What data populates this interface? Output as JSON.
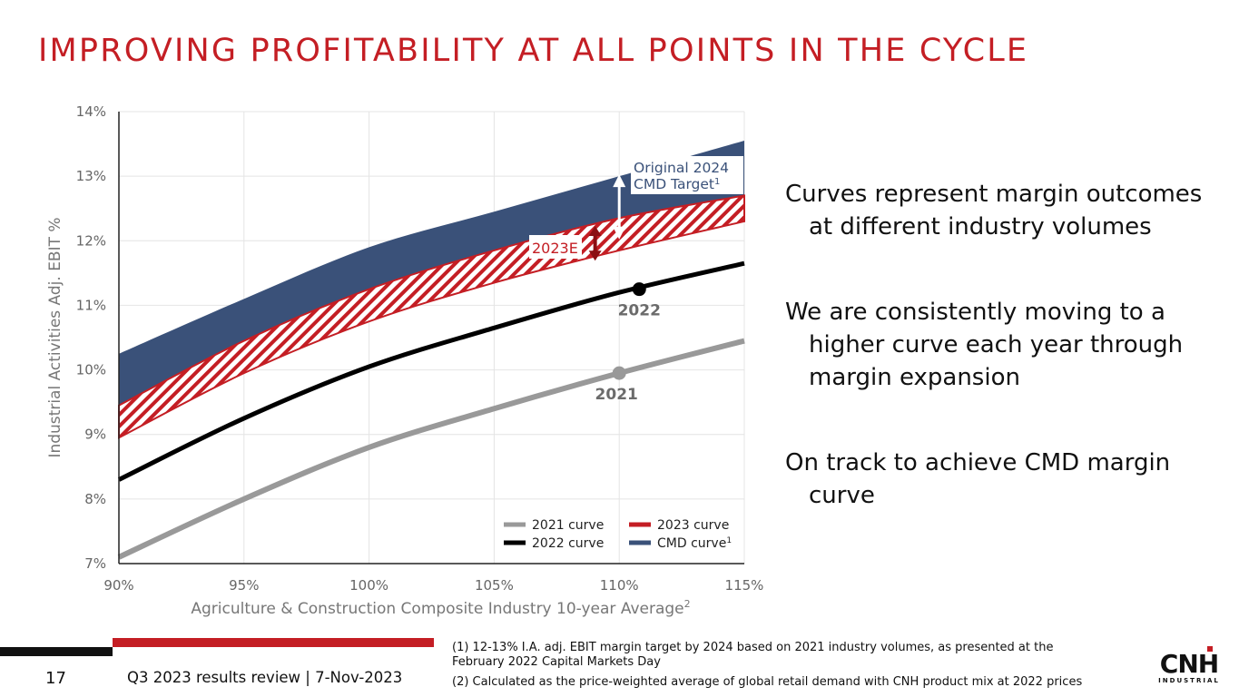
{
  "slide": {
    "title": "IMPROVING PROFITABILITY AT ALL POINTS IN THE CYCLE",
    "page_number": "17",
    "footer": "Q3 2023 results review | 7-Nov-2023",
    "notes": [
      "(1) 12-13% I.A. adj. EBIT margin target by 2024 based on 2021 industry volumes, as presented at the February 2022 Capital Markets Day",
      "(2) Calculated as the price-weighted average of global retail demand with CNH product mix at 2022 prices"
    ],
    "bullets": [
      "Curves represent margin outcomes at different industry volumes",
      "We are consistently moving to a higher curve each year through margin expansion",
      "On track to achieve CMD margin curve"
    ],
    "logo": {
      "text": "CNH",
      "subtext": "INDUSTRIAL"
    }
  },
  "chart_data": {
    "type": "line",
    "xlabel": "Agriculture & Construction Composite Industry 10-year Average",
    "xlabel_sup": "2",
    "ylabel": "Industrial Activities Adj. EBIT %",
    "xlim": [
      90,
      115
    ],
    "ylim": [
      7,
      14
    ],
    "x_ticks": [
      "90%",
      "95%",
      "100%",
      "105%",
      "110%",
      "115%"
    ],
    "y_ticks": [
      "7%",
      "8%",
      "9%",
      "10%",
      "11%",
      "12%",
      "13%",
      "14%"
    ],
    "x": [
      90,
      95,
      100,
      105,
      110,
      115
    ],
    "series": [
      {
        "name": "2021 curve",
        "color": "#999999",
        "values": [
          7.1,
          8.0,
          8.8,
          9.4,
          9.95,
          10.45
        ]
      },
      {
        "name": "2022 curve",
        "color": "#000000",
        "values": [
          8.3,
          9.25,
          10.05,
          10.65,
          11.2,
          11.65
        ]
      },
      {
        "name": "2023 curve",
        "color": "#c41e24",
        "lower": [
          8.95,
          9.95,
          10.75,
          11.35,
          11.85,
          12.3
        ],
        "upper": [
          9.45,
          10.45,
          11.25,
          11.85,
          12.35,
          12.7
        ]
      },
      {
        "name": "CMD curve",
        "color": "#3a5179",
        "lower": [
          9.1,
          10.05,
          10.85,
          11.45,
          11.95,
          12.45
        ],
        "upper": [
          10.25,
          11.1,
          11.9,
          12.45,
          13.0,
          13.55
        ]
      }
    ],
    "legend_labels": [
      "2021 curve",
      "2023 curve",
      "2022 curve",
      "CMD curve"
    ],
    "legend_sup": "1",
    "points": [
      {
        "label": "2021",
        "x": 110,
        "y": 9.95,
        "color": "#999999"
      },
      {
        "label": "2022",
        "x": 110.8,
        "y": 11.25,
        "color": "#000000"
      }
    ],
    "annotations": [
      {
        "text": "Original 2024",
        "text2": "CMD Target",
        "sup": "1",
        "x": 110,
        "y_from": 12.05,
        "y_to": 13.0
      },
      {
        "text": "2023E",
        "x": 109,
        "y_from": 11.72,
        "y_to": 12.2
      }
    ]
  }
}
